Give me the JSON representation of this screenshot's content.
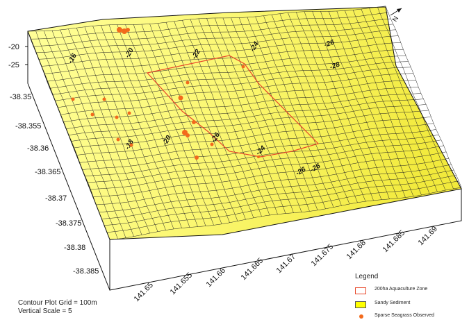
{
  "colors": {
    "surface": "#ffff99",
    "surface_right": "#f5ef44",
    "mesh": "#222222",
    "zone": "#e8482a",
    "seagrass": "#f26a1c",
    "side": "#ffffff",
    "legend_sediment": "#ffff00"
  },
  "north_label": "N",
  "vertical_axis": {
    "ticks": [
      "-20",
      "-25"
    ]
  },
  "y_axis": {
    "ticks": [
      "-38.35",
      "-38.355",
      "-38.36",
      "-38.365",
      "-38.37",
      "-38.375",
      "-38.38",
      "-38.385"
    ]
  },
  "x_axis": {
    "ticks": [
      "141.65",
      "141.655",
      "141.66",
      "141.665",
      "141.67",
      "141.675",
      "141.68",
      "141.685",
      "141.69"
    ]
  },
  "contour_labels": [
    "-16",
    "-20",
    "-22",
    "-24",
    "-26",
    "-28",
    "-18",
    "-20",
    "-26",
    "-24",
    "-26",
    "-26"
  ],
  "notes": {
    "grid": "Contour Plot Grid = 100m",
    "scale": "Vertical Scale = 5"
  },
  "legend": {
    "title": "Legend",
    "items": [
      {
        "label": "200ha Aquaculture Zone",
        "kind": "outline"
      },
      {
        "label": "Sandy Sediment",
        "kind": "fill"
      },
      {
        "label": "Sparse Seagrass Observed",
        "kind": "dot"
      }
    ]
  }
}
